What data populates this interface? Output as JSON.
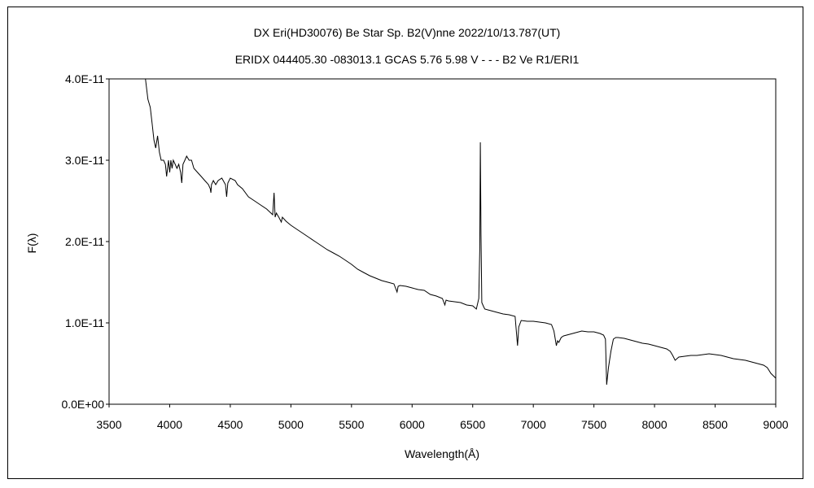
{
  "chart_data": {
    "type": "line",
    "title": "DX Eri(HD30076)    Be Star    Sp. B2(V)nne    2022/10/13.787(UT)",
    "subtitle": "ERIDX 044405.30 -083013.1 GCAS 5.76 5.98 V - - - B2 Ve R1/ERI1",
    "xlabel": "Wavelength(Å)",
    "ylabel": "F(λ)",
    "xlim": [
      3500,
      9000
    ],
    "ylim": [
      0,
      4e-11
    ],
    "x_ticks": [
      "3500",
      "4000",
      "4500",
      "5000",
      "5500",
      "6000",
      "6500",
      "7000",
      "7500",
      "8000",
      "8500",
      "9000"
    ],
    "y_ticks": [
      "0.0E+00",
      "1.0E-11",
      "2.0E-11",
      "3.0E-11",
      "4.0E-11"
    ],
    "grid": false,
    "legend": "none",
    "line_color": "#000000",
    "series": [
      {
        "x": [
          3800,
          3820,
          3840,
          3855,
          3870,
          3885,
          3900,
          3915,
          3930,
          3950,
          3965,
          3975,
          3990,
          4000,
          4010,
          4020,
          4030,
          4045,
          4060,
          4075,
          4090,
          4100,
          4110,
          4125,
          4140,
          4160,
          4180,
          4200,
          4230,
          4260,
          4290,
          4320,
          4335,
          4340,
          4345,
          4360,
          4380,
          4400,
          4430,
          4460,
          4470,
          4480,
          4500,
          4540,
          4560,
          4600,
          4650,
          4700,
          4750,
          4800,
          4850,
          4861,
          4870,
          4880,
          4900,
          4921,
          4930,
          4960,
          5000,
          5050,
          5100,
          5150,
          5200,
          5250,
          5300,
          5350,
          5400,
          5450,
          5500,
          5550,
          5600,
          5650,
          5700,
          5750,
          5800,
          5850,
          5876,
          5885,
          5900,
          5950,
          6000,
          6050,
          6100,
          6150,
          6200,
          6250,
          6270,
          6280,
          6300,
          6350,
          6400,
          6450,
          6500,
          6530,
          6550,
          6558,
          6563,
          6568,
          6575,
          6590,
          6600,
          6650,
          6700,
          6750,
          6800,
          6850,
          6860,
          6870,
          6880,
          6900,
          6950,
          7000,
          7050,
          7100,
          7150,
          7170,
          7190,
          7200,
          7210,
          7230,
          7250,
          7300,
          7350,
          7400,
          7450,
          7500,
          7550,
          7580,
          7595,
          7605,
          7620,
          7640,
          7660,
          7680,
          7700,
          7750,
          7800,
          7850,
          7900,
          7950,
          8000,
          8050,
          8100,
          8130,
          8150,
          8170,
          8200,
          8250,
          8300,
          8350,
          8400,
          8450,
          8500,
          8550,
          8600,
          8650,
          8700,
          8750,
          8800,
          8850,
          8900,
          8930,
          8960,
          8980,
          9000
        ],
        "y": [
          4e-11,
          3.75e-11,
          3.65e-11,
          3.45e-11,
          3.25e-11,
          3.15e-11,
          3.3e-11,
          3.1e-11,
          3e-11,
          3e-11,
          2.95e-11,
          2.8e-11,
          3e-11,
          2.85e-11,
          3e-11,
          2.9e-11,
          3e-11,
          2.95e-11,
          2.9e-11,
          2.95e-11,
          2.85e-11,
          2.72e-11,
          2.95e-11,
          3e-11,
          3.05e-11,
          3e-11,
          3e-11,
          2.9e-11,
          2.85e-11,
          2.8e-11,
          2.75e-11,
          2.7e-11,
          2.65e-11,
          2.6e-11,
          2.7e-11,
          2.75e-11,
          2.7e-11,
          2.75e-11,
          2.78e-11,
          2.7e-11,
          2.55e-11,
          2.72e-11,
          2.78e-11,
          2.75e-11,
          2.7e-11,
          2.65e-11,
          2.55e-11,
          2.5e-11,
          2.45e-11,
          2.4e-11,
          2.33e-11,
          2.6e-11,
          2.3e-11,
          2.35e-11,
          2.3e-11,
          2.24e-11,
          2.3e-11,
          2.25e-11,
          2.2e-11,
          2.15e-11,
          2.1e-11,
          2.05e-11,
          2e-11,
          1.95e-11,
          1.9e-11,
          1.86e-11,
          1.82e-11,
          1.77e-11,
          1.72e-11,
          1.66e-11,
          1.62e-11,
          1.58e-11,
          1.55e-11,
          1.52e-11,
          1.5e-11,
          1.48e-11,
          1.38e-11,
          1.45e-11,
          1.46e-11,
          1.45e-11,
          1.43e-11,
          1.41e-11,
          1.4e-11,
          1.35e-11,
          1.33e-11,
          1.3e-11,
          1.22e-11,
          1.28e-11,
          1.27e-11,
          1.26e-11,
          1.25e-11,
          1.22e-11,
          1.21e-11,
          1.17e-11,
          1.3e-11,
          1.9e-11,
          3.22e-11,
          2.1e-11,
          1.25e-11,
          1.2e-11,
          1.17e-11,
          1.15e-11,
          1.13e-11,
          1.11e-11,
          1.1e-11,
          1.08e-11,
          9e-12,
          7.2e-12,
          9.5e-12,
          1.03e-11,
          1.02e-11,
          1.02e-11,
          1.01e-11,
          1e-11,
          9.8e-12,
          9e-12,
          7.2e-12,
          7.8e-12,
          7.6e-12,
          8.2e-12,
          8.4e-12,
          8.6e-12,
          8.8e-12,
          9e-12,
          8.9e-12,
          8.9e-12,
          8.7e-12,
          8.5e-12,
          8e-12,
          2.4e-12,
          4.5e-12,
          6.5e-12,
          8e-12,
          8.2e-12,
          8.2e-12,
          8.1e-12,
          7.9e-12,
          7.7e-12,
          7.5e-12,
          7.4e-12,
          7.2e-12,
          7e-12,
          6.8e-12,
          6.5e-12,
          6e-12,
          5.4e-12,
          5.8e-12,
          5.9e-12,
          6e-12,
          6e-12,
          6.1e-12,
          6.2e-12,
          6.1e-12,
          6e-12,
          5.8e-12,
          5.6e-12,
          5.5e-12,
          5.4e-12,
          5.2e-12,
          5e-12,
          4.8e-12,
          4.5e-12,
          3.8e-12,
          3.5e-12,
          3.2e-12
        ]
      }
    ]
  }
}
